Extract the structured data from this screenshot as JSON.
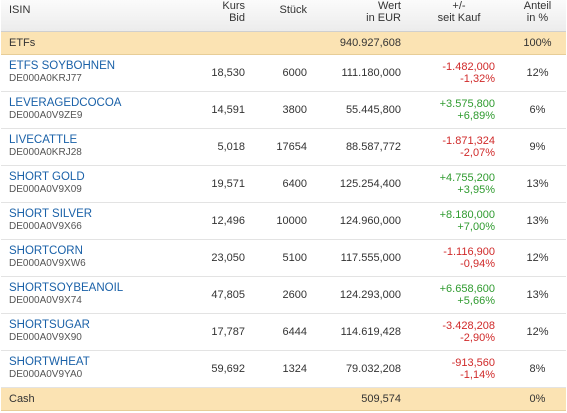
{
  "header": {
    "isin": "ISIN",
    "kurs_line1": "Kurs",
    "kurs_line2": "Bid",
    "stueck": "Stück",
    "wert_line1": "Wert",
    "wert_line2": "in EUR",
    "change_line1": "+/-",
    "change_line2": "seit Kauf",
    "anteil_line1": "Anteil",
    "anteil_line2": "in %"
  },
  "etfs": {
    "label": "ETFs",
    "wert": "940.927,608",
    "anteil": "100%"
  },
  "rows": [
    {
      "name": "ETFS SOYBOHNEN",
      "isin": "DE000A0KRJ77",
      "kurs": "18,530",
      "stueck": "6000",
      "wert": "111.180,000",
      "change_abs": "-1.482,000",
      "change_pct": "-1,32%",
      "direction": "neg",
      "anteil": "12%"
    },
    {
      "name": "LEVERAGEDCOCOA",
      "isin": "DE000A0V9ZE9",
      "kurs": "14,591",
      "stueck": "3800",
      "wert": "55.445,800",
      "change_abs": "+3.575,800",
      "change_pct": "+6,89%",
      "direction": "pos",
      "anteil": "6%"
    },
    {
      "name": "LIVECATTLE",
      "isin": "DE000A0KRJ28",
      "kurs": "5,018",
      "stueck": "17654",
      "wert": "88.587,772",
      "change_abs": "-1.871,324",
      "change_pct": "-2,07%",
      "direction": "neg",
      "anteil": "9%"
    },
    {
      "name": "SHORT GOLD",
      "isin": "DE000A0V9X09",
      "kurs": "19,571",
      "stueck": "6400",
      "wert": "125.254,400",
      "change_abs": "+4.755,200",
      "change_pct": "+3,95%",
      "direction": "pos",
      "anteil": "13%"
    },
    {
      "name": "SHORT SILVER",
      "isin": "DE000A0V9X66",
      "kurs": "12,496",
      "stueck": "10000",
      "wert": "124.960,000",
      "change_abs": "+8.180,000",
      "change_pct": "+7,00%",
      "direction": "pos",
      "anteil": "13%"
    },
    {
      "name": "SHORTCORN",
      "isin": "DE000A0V9XW6",
      "kurs": "23,050",
      "stueck": "5100",
      "wert": "117.555,000",
      "change_abs": "-1.116,900",
      "change_pct": "-0,94%",
      "direction": "neg",
      "anteil": "12%"
    },
    {
      "name": "SHORTSOYBEANOIL",
      "isin": "DE000A0V9X74",
      "kurs": "47,805",
      "stueck": "2600",
      "wert": "124.293,000",
      "change_abs": "+6.658,600",
      "change_pct": "+5,66%",
      "direction": "pos",
      "anteil": "13%"
    },
    {
      "name": "SHORTSUGAR",
      "isin": "DE000A0V9X90",
      "kurs": "17,787",
      "stueck": "6444",
      "wert": "114.619,428",
      "change_abs": "-3.428,208",
      "change_pct": "-2,90%",
      "direction": "neg",
      "anteil": "12%"
    },
    {
      "name": "SHORTWHEAT",
      "isin": "DE000A0V9YA0",
      "kurs": "59,692",
      "stueck": "1324",
      "wert": "79.032,208",
      "change_abs": "-913,560",
      "change_pct": "-1,14%",
      "direction": "neg",
      "anteil": "8%"
    }
  ],
  "cash": {
    "label": "Cash",
    "wert": "509,574",
    "anteil": "0%"
  },
  "colors": {
    "positive": "#2f9b2f",
    "negative": "#d02a2a",
    "link": "#1a61a8",
    "section_bg": "#fbe3b3"
  }
}
